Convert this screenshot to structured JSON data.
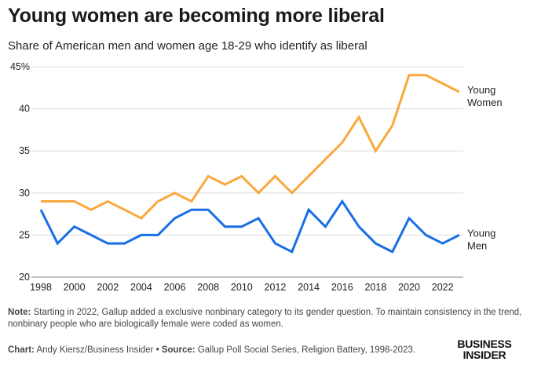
{
  "header": {
    "title": "Young women are becoming more liberal",
    "subtitle": "Share of American men and women age 18-29 who identify as liberal"
  },
  "footer": {
    "note_label": "Note:",
    "note_text": "Starting in 2022, Gallup added a exclusive nonbinary category to its gender question. To maintain consistency in the trend, nonbinary people who are biologically female were coded as women.",
    "chart_label": "Chart:",
    "chart_text": "Andy Kiersz/Business Insider",
    "separator": "•",
    "source_label": "Source:",
    "source_text": "Gallup Poll Social Series, Religion Battery, 1998-2023.",
    "logo_line1": "BUSINESS",
    "logo_line2": "INSIDER"
  },
  "chart_data": {
    "type": "line",
    "title": "Young women are becoming more liberal",
    "subtitle": "Share of American men and women age 18-29 who identify as liberal",
    "xlabel": "",
    "ylabel": "",
    "x": [
      1998,
      1999,
      2000,
      2001,
      2002,
      2003,
      2004,
      2005,
      2006,
      2007,
      2008,
      2009,
      2010,
      2011,
      2012,
      2013,
      2014,
      2015,
      2016,
      2017,
      2018,
      2019,
      2020,
      2021,
      2022,
      2023
    ],
    "xticks": [
      "1998",
      "2000",
      "2002",
      "2004",
      "2006",
      "2008",
      "2010",
      "2012",
      "2014",
      "2016",
      "2018",
      "2020",
      "2022"
    ],
    "xlim": [
      1998,
      2023
    ],
    "yticks": [
      "20",
      "25",
      "30",
      "35",
      "40",
      "45%"
    ],
    "ylim": [
      20,
      45
    ],
    "grid": true,
    "legend": "direct labels at right end of lines",
    "series": [
      {
        "name": "Young Women",
        "label_lines": [
          "Young",
          "Women"
        ],
        "color": "#F9A83D",
        "values": [
          29,
          29,
          29,
          28,
          29,
          28,
          27,
          29,
          30,
          29,
          32,
          31,
          32,
          30,
          32,
          30,
          32,
          34,
          36,
          39,
          35,
          38,
          44,
          44,
          43,
          42
        ]
      },
      {
        "name": "Young Men",
        "label_lines": [
          "Young",
          "Men"
        ],
        "color": "#1A6EE6",
        "values": [
          28,
          24,
          26,
          25,
          24,
          24,
          25,
          25,
          27,
          28,
          28,
          26,
          26,
          27,
          24,
          23,
          28,
          26,
          29,
          26,
          24,
          23,
          27,
          25,
          24,
          25
        ]
      }
    ]
  }
}
